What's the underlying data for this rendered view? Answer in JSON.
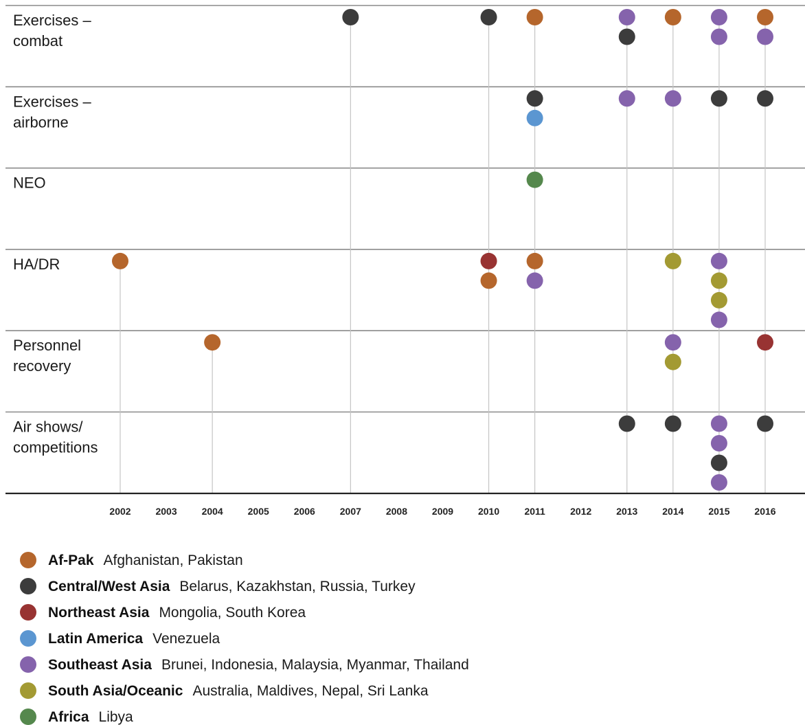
{
  "chart_data": {
    "type": "scatter",
    "title": "",
    "xlabel": "",
    "ylabel": "",
    "grid": true,
    "legend_position": "bottom-left",
    "years": [
      2002,
      2003,
      2004,
      2005,
      2006,
      2007,
      2008,
      2009,
      2010,
      2011,
      2012,
      2013,
      2014,
      2015,
      2016
    ],
    "rows": [
      {
        "id": "exercises-combat",
        "label_lines": [
          "Exercises –",
          "combat"
        ]
      },
      {
        "id": "exercises-airborne",
        "label_lines": [
          "Exercises –",
          "airborne"
        ]
      },
      {
        "id": "neo",
        "label_lines": [
          "NEO"
        ]
      },
      {
        "id": "ha-dr",
        "label_lines": [
          "HA/DR"
        ]
      },
      {
        "id": "personnel-recovery",
        "label_lines": [
          "Personnel",
          "recovery"
        ]
      },
      {
        "id": "air-shows",
        "label_lines": [
          "Air shows/",
          "competitions"
        ]
      }
    ],
    "regions": [
      {
        "id": "af-pak",
        "name": "Af-Pak",
        "countries": "Afghanistan, Pakistan",
        "color": "#b5662c"
      },
      {
        "id": "central-west-asia",
        "name": "Central/West Asia",
        "countries": "Belarus, Kazakhstan, Russia, Turkey",
        "color": "#3c3c3c"
      },
      {
        "id": "northeast-asia",
        "name": "Northeast Asia",
        "countries": "Mongolia, South Korea",
        "color": "#983332"
      },
      {
        "id": "latin-america",
        "name": "Latin America",
        "countries": "Venezuela",
        "color": "#5b96d1"
      },
      {
        "id": "southeast-asia",
        "name": "Southeast Asia",
        "countries": "Brunei, Indonesia, Malaysia, Myanmar, Thailand",
        "color": "#8563ac"
      },
      {
        "id": "south-asia-oceanic",
        "name": "South Asia/Oceanic",
        "countries": "Australia, Maldives, Nepal, Sri Lanka",
        "color": "#a39a33"
      },
      {
        "id": "africa",
        "name": "Africa",
        "countries": "Libya",
        "color": "#55884d"
      }
    ],
    "events": [
      {
        "row": "exercises-combat",
        "year": 2007,
        "regions": [
          "central-west-asia"
        ]
      },
      {
        "row": "exercises-combat",
        "year": 2010,
        "regions": [
          "central-west-asia"
        ]
      },
      {
        "row": "exercises-combat",
        "year": 2011,
        "regions": [
          "af-pak"
        ]
      },
      {
        "row": "exercises-combat",
        "year": 2013,
        "regions": [
          "southeast-asia",
          "central-west-asia"
        ]
      },
      {
        "row": "exercises-combat",
        "year": 2014,
        "regions": [
          "af-pak"
        ]
      },
      {
        "row": "exercises-combat",
        "year": 2015,
        "regions": [
          "southeast-asia",
          "southeast-asia"
        ]
      },
      {
        "row": "exercises-combat",
        "year": 2016,
        "regions": [
          "af-pak",
          "southeast-asia"
        ]
      },
      {
        "row": "exercises-airborne",
        "year": 2011,
        "regions": [
          "central-west-asia",
          "latin-america"
        ]
      },
      {
        "row": "exercises-airborne",
        "year": 2013,
        "regions": [
          "southeast-asia"
        ]
      },
      {
        "row": "exercises-airborne",
        "year": 2014,
        "regions": [
          "southeast-asia"
        ]
      },
      {
        "row": "exercises-airborne",
        "year": 2015,
        "regions": [
          "central-west-asia"
        ]
      },
      {
        "row": "exercises-airborne",
        "year": 2016,
        "regions": [
          "central-west-asia"
        ]
      },
      {
        "row": "neo",
        "year": 2011,
        "regions": [
          "africa"
        ]
      },
      {
        "row": "ha-dr",
        "year": 2002,
        "regions": [
          "af-pak"
        ]
      },
      {
        "row": "ha-dr",
        "year": 2010,
        "regions": [
          "northeast-asia",
          "af-pak"
        ]
      },
      {
        "row": "ha-dr",
        "year": 2011,
        "regions": [
          "af-pak",
          "southeast-asia"
        ]
      },
      {
        "row": "ha-dr",
        "year": 2014,
        "regions": [
          "south-asia-oceanic"
        ]
      },
      {
        "row": "ha-dr",
        "year": 2015,
        "regions": [
          "southeast-asia",
          "south-asia-oceanic",
          "south-asia-oceanic",
          "southeast-asia"
        ]
      },
      {
        "row": "personnel-recovery",
        "year": 2004,
        "regions": [
          "af-pak"
        ]
      },
      {
        "row": "personnel-recovery",
        "year": 2014,
        "regions": [
          "southeast-asia",
          "south-asia-oceanic"
        ]
      },
      {
        "row": "personnel-recovery",
        "year": 2016,
        "regions": [
          "northeast-asia"
        ]
      },
      {
        "row": "air-shows",
        "year": 2013,
        "regions": [
          "central-west-asia"
        ]
      },
      {
        "row": "air-shows",
        "year": 2014,
        "regions": [
          "central-west-asia"
        ]
      },
      {
        "row": "air-shows",
        "year": 2015,
        "regions": [
          "southeast-asia",
          "southeast-asia",
          "central-west-asia",
          "southeast-asia"
        ]
      },
      {
        "row": "air-shows",
        "year": 2016,
        "regions": [
          "central-west-asia"
        ]
      }
    ],
    "stems": [
      {
        "year": 2002,
        "from_row": "ha-dr"
      },
      {
        "year": 2004,
        "from_row": "personnel-recovery"
      },
      {
        "year": 2007,
        "from_row": "exercises-combat"
      },
      {
        "year": 2010,
        "from_row": "exercises-combat"
      },
      {
        "year": 2011,
        "from_row": "exercises-combat"
      },
      {
        "year": 2013,
        "from_row": "exercises-combat"
      },
      {
        "year": 2014,
        "from_row": "exercises-combat"
      },
      {
        "year": 2015,
        "from_row": "exercises-combat"
      },
      {
        "year": 2016,
        "from_row": "exercises-combat"
      }
    ]
  }
}
